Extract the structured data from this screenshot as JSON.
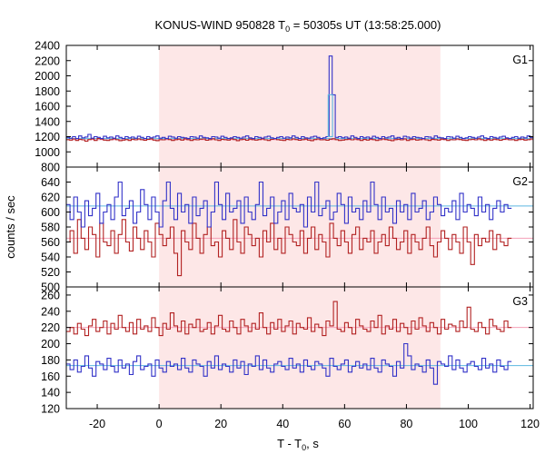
{
  "chart_data": {
    "type": "line",
    "title_main": "KONUS-WIND 950828 T",
    "title_sub": "0",
    "title_rest": " = 50305s UT (13:58:25.000)",
    "xlabel_main": "T - T",
    "xlabel_sub": "0",
    "xlabel_rest": ", s",
    "ylabel": "counts / sec",
    "xlim": [
      -30,
      121
    ],
    "x_ticks": [
      -20,
      0,
      20,
      40,
      60,
      80,
      100,
      120
    ],
    "shaded_region": {
      "x0": 0,
      "x1": 91,
      "color": "#fde7e7"
    },
    "colors": {
      "red": "#b22222",
      "blue": "#3232c8",
      "blue_light": "#5bb8e0",
      "red_light": "#f4a0b8"
    },
    "panels": [
      {
        "label": "G1",
        "ylim": [
          800,
          2400
        ],
        "y_ticks": [
          800,
          1000,
          1200,
          1400,
          1600,
          1800,
          2000,
          2200,
          2400
        ],
        "bin_width": 1.0,
        "x_start": -30,
        "series": [
          {
            "color": "red",
            "values": [
              1160,
              1155,
              1170,
              1150,
              1165,
              1158,
              1140,
              1162,
              1170,
              1150,
              1175,
              1168,
              1155,
              1150,
              1160,
              1172,
              1160,
              1148,
              1155,
              1162,
              1150,
              1166,
              1158,
              1170,
              1160,
              1152,
              1164,
              1170,
              1155,
              1148,
              1160,
              1158,
              1172,
              1162,
              1150,
              1160,
              1168,
              1155,
              1170,
              1160,
              1150,
              1162,
              1158,
              1166,
              1170,
              1152,
              1160,
              1172,
              1158,
              1150,
              1165,
              1160,
              1155,
              1170,
              1162,
              1148,
              1160,
              1166,
              1152,
              1168,
              1160,
              1155,
              1162,
              1170,
              1158,
              1150,
              1164,
              1172,
              1160,
              1155,
              1150,
              1165,
              1158,
              1170,
              1162,
              1152,
              1160,
              1168,
              1155,
              1148,
              1162,
              1170,
              1158,
              1160,
              1152,
              1166,
              1172,
              1160,
              1150,
              1155,
              1162,
              1168,
              1158,
              1170,
              1160,
              1150,
              1164,
              1155,
              1168,
              1160,
              1150,
              1158,
              1170,
              1162,
              1155,
              1148,
              1160,
              1166,
              1158,
              1170,
              1150,
              1162,
              1168,
              1155,
              1160,
              1172,
              1158,
              1150,
              1164,
              1160,
              1155,
              1168,
              1162,
              1150,
              1160,
              1158,
              1170,
              1162,
              1155,
              1150,
              1160,
              1166,
              1158,
              1172,
              1160,
              1150,
              1162,
              1155,
              1168,
              1160,
              1152,
              1164,
              1170,
              1158,
              1160,
              1150,
              1162,
              1166,
              1155,
              1160,
              1170
            ]
          },
          {
            "color": "blue",
            "values": [
              1190,
              1180,
              1200,
              1175,
              1210,
              1185,
              1195,
              1230,
              1180,
              1200,
              1190,
              1175,
              1205,
              1185,
              1195,
              1180,
              1210,
              1190,
              1175,
              1200,
              1185,
              1195,
              1180,
              1205,
              1190,
              1175,
              1200,
              1185,
              1195,
              1210,
              1180,
              1190,
              1175,
              1205,
              1195,
              1180,
              1200,
              1190,
              1185,
              1175,
              1200,
              1195,
              1180,
              1210,
              1190,
              1185,
              1175,
              1200,
              1195,
              1180,
              1205,
              1190,
              1175,
              1185,
              1200,
              1190,
              1180,
              1195,
              1210,
              1185,
              1175,
              1200,
              1190,
              1180,
              1195,
              1205,
              1185,
              1175,
              1190,
              1200,
              1180,
              1195,
              1185,
              1210,
              1190,
              1175,
              1200,
              1185,
              1180,
              1195,
              1205,
              1190,
              1175,
              1185,
              1200,
              2260,
              1750,
              1190,
              1200,
              1185,
              1195,
              1180,
              1210,
              1190,
              1175,
              1200,
              1185,
              1195,
              1180,
              1205,
              1190,
              1175,
              1200,
              1185,
              1195,
              1210,
              1180,
              1190,
              1175,
              1205,
              1195,
              1180,
              1200,
              1190,
              1185,
              1175,
              1200,
              1195,
              1180,
              1210,
              1190,
              1185,
              1175,
              1200,
              1195,
              1180,
              1205,
              1190,
              1175,
              1185,
              1200,
              1190,
              1180,
              1195,
              1210,
              1185,
              1175,
              1200,
              1190,
              1180,
              1195,
              1205,
              1185,
              1175,
              1190,
              1200,
              1180,
              1195,
              1185,
              1210,
              1190
            ]
          }
        ],
        "fits": [
          {
            "color": "red_light",
            "value": 1160
          },
          {
            "color": "blue_light",
            "value": 1175
          }
        ]
      },
      {
        "label": "G2",
        "ylim": [
          500,
          660
        ],
        "y_ticks": [
          500,
          520,
          540,
          560,
          580,
          600,
          620,
          640
        ],
        "bin_width": 1.2,
        "x_start": -30,
        "series": [
          {
            "color": "red",
            "values": [
              560,
              575,
              545,
              590,
              565,
              550,
              580,
              570,
              540,
              585,
              560,
              555,
              575,
              545,
              570,
              590,
              560,
              548,
              580,
              565,
              550,
              575,
              560,
              540,
              585,
              570,
              555,
              565,
              580,
              545,
              515,
              575,
              560,
              550,
              585,
              565,
              545,
              570,
              580,
              555,
              560,
              540,
              575,
              565,
              550,
              590,
              560,
              545,
              580,
              570,
              555,
              565,
              540,
              575,
              560,
              585,
              550,
              565,
              545,
              580,
              570,
              560,
              555,
              575,
              545,
              565,
              580,
              550,
              570,
              560,
              540,
              585,
              565,
              555,
              575,
              560,
              545,
              570,
              580,
              550,
              565,
              560,
              575,
              545,
              560,
              570,
              555,
              580,
              565,
              550,
              560,
              575,
              545,
              570,
              560,
              550,
              565,
              580,
              555,
              540,
              560,
              575,
              565,
              550,
              570,
              560,
              545,
              580,
              560,
              530,
              570,
              555,
              565,
              560,
              575,
              550,
              570,
              560,
              555,
              565
            ]
          },
          {
            "color": "blue",
            "values": [
              610,
              590,
              620,
              600,
              580,
              615,
              595,
              605,
              625,
              585,
              600,
              610,
              590,
              620,
              640,
              595,
              605,
              615,
              585,
              600,
              630,
              610,
              590,
              620,
              600,
              580,
              615,
              640,
              605,
              590,
              625,
              600,
              610,
              585,
              620,
              595,
              605,
              615,
              580,
              600,
              640,
              610,
              590,
              625,
              600,
              605,
              615,
              585,
              620,
              600,
              590,
              610,
              640,
              595,
              605,
              620,
              585,
              600,
              615,
              590,
              625,
              605,
              600,
              610,
              580,
              620,
              600,
              640,
              595,
              605,
              615,
              590,
              600,
              625,
              610,
              585,
              620,
              600,
              605,
              590,
              615,
              600,
              640,
              610,
              590,
              620,
              600,
              605,
              585,
              615,
              600,
              610,
              590,
              625,
              600,
              605,
              615,
              590,
              600,
              620,
              610,
              595,
              605,
              600,
              615,
              590,
              625,
              600,
              610,
              605,
              595,
              620,
              600,
              610,
              590,
              605,
              615,
              600,
              610,
              605
            ]
          }
        ],
        "fits": [
          {
            "color": "red_light",
            "value": 565
          },
          {
            "color": "blue_light",
            "value": 608
          }
        ]
      },
      {
        "label": "G3",
        "ylim": [
          120,
          270
        ],
        "y_ticks": [
          120,
          140,
          160,
          180,
          200,
          220,
          240,
          260
        ],
        "bin_width": 1.2,
        "x_start": -30,
        "series": [
          {
            "color": "red",
            "values": [
              215,
              220,
              212,
              225,
              218,
              210,
              222,
              230,
              215,
              220,
              228,
              212,
              225,
              218,
              235,
              220,
              215,
              226,
              212,
              230,
              218,
              222,
              215,
              232,
              220,
              210,
              225,
              218,
              238,
              222,
              215,
              228,
              212,
              224,
              220,
              230,
              215,
              218,
              226,
              212,
              222,
              235,
              218,
              215,
              228,
              220,
              212,
              230,
              222,
              215,
              225,
              218,
              238,
              220,
              212,
              226,
              218,
              230,
              215,
              222,
              228,
              212,
              225,
              220,
              218,
              232,
              215,
              224,
              220,
              210,
              228,
              222,
              252,
              218,
              215,
              226,
              220,
              212,
              230,
              222,
              218,
              215,
              228,
              220,
              235,
              212,
              222,
              218,
              230,
              215,
              225,
              220,
              212,
              228,
              218,
              232,
              222,
              215,
              226,
              220,
              212,
              230,
              218,
              224,
              222,
              215,
              228,
              220,
              245,
              218,
              215,
              226,
              220,
              212,
              230,
              222,
              218,
              215,
              228,
              220
            ]
          },
          {
            "color": "blue",
            "values": [
              175,
              168,
              180,
              165,
              172,
              185,
              170,
              160,
              178,
              175,
              168,
              182,
              172,
              165,
              180,
              170,
              175,
              162,
              178,
              185,
              168,
              172,
              175,
              160,
              180,
              170,
              165,
              178,
              172,
              175,
              168,
              182,
              170,
              165,
              180,
              175,
              172,
              160,
              178,
              170,
              185,
              168,
              175,
              172,
              165,
              180,
              170,
              178,
              162,
              175,
              172,
              185,
              168,
              180,
              170,
              165,
              175,
              178,
              172,
              168,
              182,
              170,
              175,
              165,
              180,
              172,
              168,
              178,
              175,
              170,
              160,
              182,
              172,
              168,
              175,
              180,
              165,
              172,
              178,
              170,
              175,
              168,
              182,
              170,
              165,
              180,
              175,
              172,
              160,
              178,
              170,
              200,
              185,
              168,
              175,
              172,
              165,
              180,
              170,
              150,
              178,
              175,
              172,
              185,
              168,
              180,
              170,
              165,
              175,
              178,
              172,
              168,
              182,
              170,
              175,
              165,
              180,
              172,
              168,
              178
            ]
          }
        ],
        "fits": [
          {
            "color": "red_light",
            "value": 220
          },
          {
            "color": "blue_light",
            "value": 173
          }
        ]
      }
    ]
  }
}
